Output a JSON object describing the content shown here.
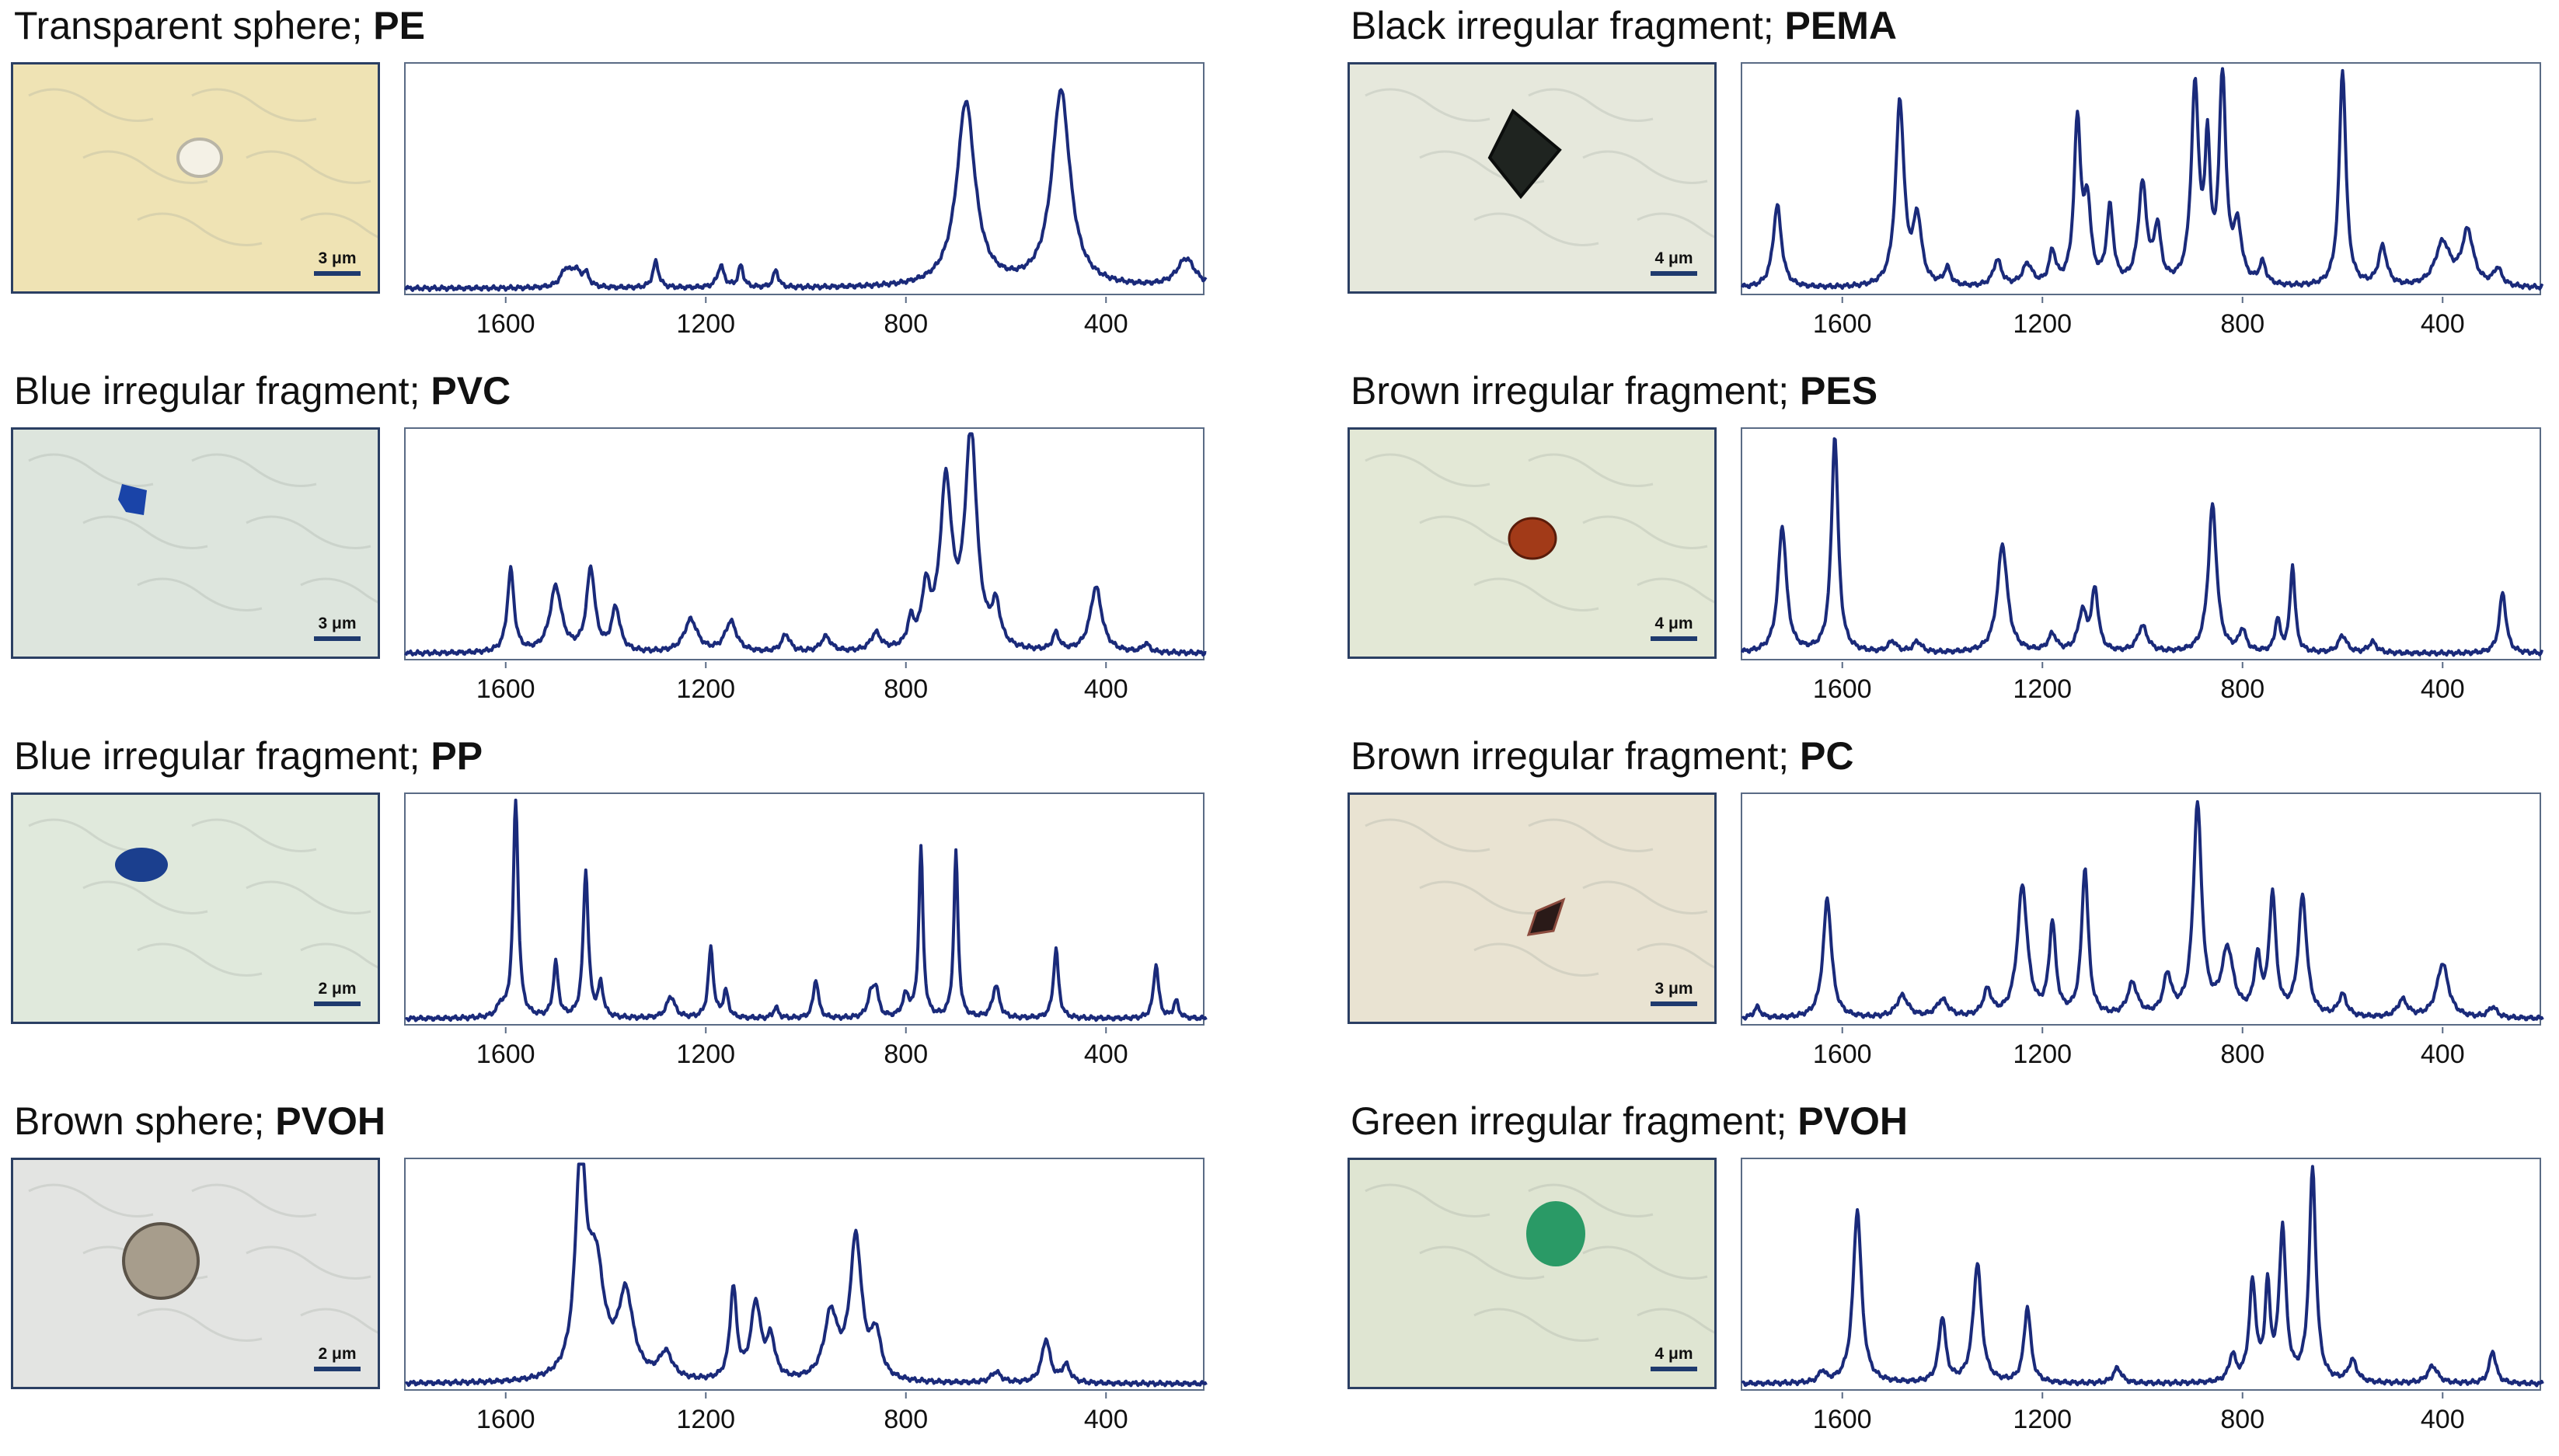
{
  "figure": {
    "colors": {
      "line": "#1a2a7a",
      "axis": "#5a6b85"
    }
  },
  "panels": [
    {
      "id": "pe",
      "title": "Transparent sphere; ",
      "polymer": "PE",
      "scale": "3 μm",
      "particle": {
        "bg": "#efe3b4",
        "color": "#f4f1e6",
        "shape": "sphere"
      }
    },
    {
      "id": "pema",
      "title": "Black irregular fragment; ",
      "polymer": "PEMA",
      "scale": "4 μm",
      "particle": {
        "bg": "#e6e8dc",
        "color": "#1f2420",
        "shape": "triangle"
      }
    },
    {
      "id": "pvc",
      "title": "Blue irregular fragment; ",
      "polymer": "PVC",
      "scale": "3 μm",
      "particle": {
        "bg": "#dde5dd",
        "color": "#1a44a8",
        "shape": "blob-small"
      }
    },
    {
      "id": "pes",
      "title": "Brown irregular fragment; ",
      "polymer": "PES",
      "scale": "4 μm",
      "particle": {
        "bg": "#e3e8d6",
        "color": "#a23a18",
        "shape": "blob"
      }
    },
    {
      "id": "pp",
      "title": "Blue irregular fragment; ",
      "polymer": "PP",
      "scale": "2 μm",
      "particle": {
        "bg": "#e0e9dc",
        "color": "#1b3f8e",
        "shape": "cluster"
      }
    },
    {
      "id": "pc",
      "title": "Brown irregular fragment; ",
      "polymer": "PC",
      "scale": "3 μm",
      "particle": {
        "bg": "#e9e3d2",
        "color": "#2a1a18",
        "shape": "shard"
      }
    },
    {
      "id": "pvoh1",
      "title": "Brown sphere; ",
      "polymer": "PVOH",
      "scale": "2 μm",
      "particle": {
        "bg": "#e3e4e2",
        "color": "#a79d8c",
        "shape": "sphere-big"
      }
    },
    {
      "id": "pvoh2",
      "title": "Green irregular fragment; ",
      "polymer": "PVOH",
      "scale": "4 μm",
      "particle": {
        "bg": "#dfe5d2",
        "color": "#2a9a66",
        "shape": "cluster-big"
      }
    }
  ],
  "chart_data": [
    {
      "type": "line",
      "title": "Transparent sphere; PE",
      "xlabel": "",
      "ylabel": "",
      "xlim": [
        1800,
        200
      ],
      "ylim": [
        0,
        1
      ],
      "xticks": [
        1600,
        1200,
        800,
        400
      ],
      "peaks": [
        [
          1480,
          0.08,
          12
        ],
        [
          1460,
          0.07,
          10
        ],
        [
          1440,
          0.06,
          8
        ],
        [
          1300,
          0.12,
          7
        ],
        [
          1170,
          0.1,
          8
        ],
        [
          1130,
          0.1,
          6
        ],
        [
          1060,
          0.08,
          6
        ],
        [
          680,
          0.85,
          22
        ],
        [
          490,
          0.9,
          22
        ],
        [
          240,
          0.13,
          22
        ]
      ]
    },
    {
      "type": "line",
      "title": "Black irregular fragment; PEMA",
      "xlabel": "",
      "ylabel": "",
      "xlim": [
        1800,
        200
      ],
      "ylim": [
        0,
        1
      ],
      "xticks": [
        1600,
        1200,
        800,
        400
      ],
      "peaks": [
        [
          1730,
          0.38,
          10
        ],
        [
          1485,
          0.85,
          10
        ],
        [
          1450,
          0.3,
          10
        ],
        [
          1390,
          0.08,
          8
        ],
        [
          1290,
          0.12,
          10
        ],
        [
          1230,
          0.1,
          12
        ],
        [
          1180,
          0.15,
          8
        ],
        [
          1130,
          0.75,
          8
        ],
        [
          1110,
          0.35,
          8
        ],
        [
          1065,
          0.35,
          8
        ],
        [
          1000,
          0.46,
          10
        ],
        [
          970,
          0.25,
          8
        ],
        [
          895,
          0.9,
          9
        ],
        [
          870,
          0.6,
          6
        ],
        [
          840,
          0.95,
          8
        ],
        [
          810,
          0.25,
          10
        ],
        [
          760,
          0.1,
          8
        ],
        [
          600,
          1.0,
          8
        ],
        [
          520,
          0.18,
          10
        ],
        [
          400,
          0.2,
          18
        ],
        [
          350,
          0.25,
          14
        ],
        [
          290,
          0.08,
          10
        ]
      ]
    },
    {
      "type": "line",
      "title": "Blue irregular fragment; PVC",
      "xlabel": "",
      "ylabel": "",
      "xlim": [
        1800,
        200
      ],
      "ylim": [
        0,
        1
      ],
      "xticks": [
        1600,
        1200,
        800,
        400
      ],
      "peaks": [
        [
          1590,
          0.38,
          8
        ],
        [
          1500,
          0.3,
          14
        ],
        [
          1430,
          0.38,
          10
        ],
        [
          1380,
          0.2,
          10
        ],
        [
          1230,
          0.15,
          16
        ],
        [
          1150,
          0.14,
          14
        ],
        [
          1040,
          0.08,
          10
        ],
        [
          960,
          0.07,
          12
        ],
        [
          860,
          0.08,
          12
        ],
        [
          790,
          0.12,
          8
        ],
        [
          760,
          0.25,
          10
        ],
        [
          720,
          0.75,
          14
        ],
        [
          670,
          1.0,
          14
        ],
        [
          620,
          0.18,
          10
        ],
        [
          500,
          0.08,
          8
        ],
        [
          420,
          0.3,
          14
        ],
        [
          320,
          0.04,
          8
        ]
      ]
    },
    {
      "type": "line",
      "title": "Brown irregular fragment; PES",
      "xlabel": "",
      "ylabel": "",
      "xlim": [
        1800,
        200
      ],
      "ylim": [
        0,
        1
      ],
      "xticks": [
        1600,
        1200,
        800,
        400
      ],
      "peaks": [
        [
          1720,
          0.58,
          10
        ],
        [
          1615,
          1.0,
          8
        ],
        [
          1500,
          0.05,
          10
        ],
        [
          1450,
          0.05,
          10
        ],
        [
          1280,
          0.5,
          12
        ],
        [
          1180,
          0.08,
          10
        ],
        [
          1120,
          0.18,
          10
        ],
        [
          1095,
          0.28,
          8
        ],
        [
          1000,
          0.12,
          12
        ],
        [
          860,
          0.68,
          10
        ],
        [
          800,
          0.1,
          8
        ],
        [
          730,
          0.15,
          6
        ],
        [
          700,
          0.4,
          6
        ],
        [
          600,
          0.08,
          10
        ],
        [
          540,
          0.05,
          10
        ],
        [
          280,
          0.28,
          8
        ]
      ]
    },
    {
      "type": "line",
      "title": "Blue irregular fragment; PP",
      "xlabel": "",
      "ylabel": "",
      "xlim": [
        1800,
        200
      ],
      "ylim": [
        0,
        1
      ],
      "xticks": [
        1600,
        1200,
        800,
        400
      ],
      "peaks": [
        [
          1610,
          0.05,
          8
        ],
        [
          1580,
          1.0,
          6
        ],
        [
          1500,
          0.25,
          6
        ],
        [
          1440,
          0.68,
          6
        ],
        [
          1410,
          0.15,
          6
        ],
        [
          1270,
          0.1,
          10
        ],
        [
          1190,
          0.32,
          6
        ],
        [
          1160,
          0.12,
          6
        ],
        [
          1060,
          0.05,
          6
        ],
        [
          980,
          0.18,
          6
        ],
        [
          870,
          0.1,
          8
        ],
        [
          860,
          0.12,
          6
        ],
        [
          800,
          0.1,
          8
        ],
        [
          770,
          0.78,
          5
        ],
        [
          700,
          0.76,
          5
        ],
        [
          620,
          0.15,
          8
        ],
        [
          500,
          0.32,
          6
        ],
        [
          300,
          0.25,
          6
        ],
        [
          260,
          0.08,
          6
        ]
      ]
    },
    {
      "type": "line",
      "title": "Brown irregular fragment; PC",
      "xlabel": "",
      "ylabel": "",
      "xlim": [
        1800,
        200
      ],
      "ylim": [
        0,
        1
      ],
      "xticks": [
        1600,
        1200,
        800,
        400
      ],
      "peaks": [
        [
          1770,
          0.05,
          8
        ],
        [
          1630,
          0.55,
          10
        ],
        [
          1480,
          0.1,
          14
        ],
        [
          1400,
          0.08,
          14
        ],
        [
          1310,
          0.12,
          10
        ],
        [
          1240,
          0.6,
          12
        ],
        [
          1180,
          0.42,
          8
        ],
        [
          1115,
          0.68,
          8
        ],
        [
          1020,
          0.15,
          12
        ],
        [
          950,
          0.18,
          10
        ],
        [
          890,
          0.97,
          10
        ],
        [
          830,
          0.3,
          14
        ],
        [
          770,
          0.25,
          8
        ],
        [
          740,
          0.55,
          8
        ],
        [
          680,
          0.55,
          10
        ],
        [
          600,
          0.1,
          10
        ],
        [
          480,
          0.08,
          12
        ],
        [
          400,
          0.25,
          14
        ],
        [
          300,
          0.05,
          10
        ]
      ]
    },
    {
      "type": "line",
      "title": "Brown sphere; PVOH",
      "xlabel": "",
      "ylabel": "",
      "xlim": [
        1800,
        200
      ],
      "ylim": [
        0,
        1
      ],
      "xticks": [
        1600,
        1200,
        800,
        400
      ],
      "peaks": [
        [
          1450,
          1.0,
          12
        ],
        [
          1420,
          0.5,
          20
        ],
        [
          1360,
          0.38,
          18
        ],
        [
          1280,
          0.12,
          16
        ],
        [
          1145,
          0.42,
          8
        ],
        [
          1100,
          0.35,
          12
        ],
        [
          1070,
          0.18,
          10
        ],
        [
          950,
          0.3,
          16
        ],
        [
          900,
          0.65,
          14
        ],
        [
          860,
          0.2,
          12
        ],
        [
          620,
          0.05,
          12
        ],
        [
          520,
          0.2,
          10
        ],
        [
          480,
          0.08,
          10
        ]
      ]
    },
    {
      "type": "line",
      "title": "Green irregular fragment; PVOH",
      "xlabel": "",
      "ylabel": "",
      "xlim": [
        1800,
        200
      ],
      "ylim": [
        0,
        1
      ],
      "xticks": [
        1600,
        1200,
        800,
        400
      ],
      "peaks": [
        [
          1640,
          0.05,
          8
        ],
        [
          1570,
          0.8,
          10
        ],
        [
          1400,
          0.3,
          8
        ],
        [
          1330,
          0.55,
          10
        ],
        [
          1230,
          0.35,
          8
        ],
        [
          1050,
          0.07,
          10
        ],
        [
          820,
          0.12,
          8
        ],
        [
          780,
          0.45,
          8
        ],
        [
          750,
          0.42,
          6
        ],
        [
          720,
          0.7,
          8
        ],
        [
          660,
          0.98,
          8
        ],
        [
          580,
          0.1,
          10
        ],
        [
          420,
          0.08,
          12
        ],
        [
          300,
          0.15,
          8
        ]
      ]
    }
  ]
}
